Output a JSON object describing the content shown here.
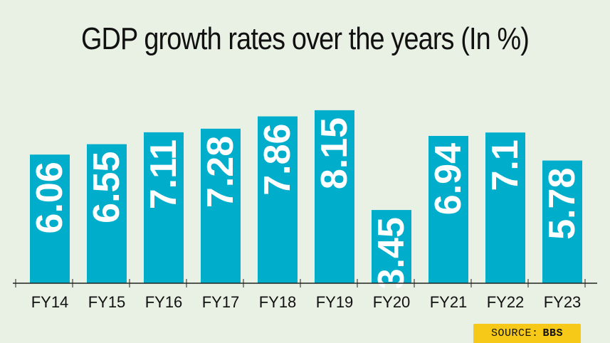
{
  "chart_data": {
    "type": "bar",
    "title": "GDP growth rates over the years (In %)",
    "categories": [
      "FY14",
      "FY15",
      "FY16",
      "FY17",
      "FY18",
      "FY19",
      "FY20",
      "FY21",
      "FY22",
      "FY23"
    ],
    "values": [
      6.06,
      6.55,
      7.11,
      7.28,
      7.86,
      8.15,
      3.45,
      6.94,
      7.1,
      5.78
    ],
    "value_labels": [
      "6.06",
      "6.55",
      "7.11",
      "7.28",
      "7.86",
      "8.15",
      "3.45",
      "6.94",
      "7.1",
      "5.78"
    ],
    "xlabel": "",
    "ylabel": "",
    "ylim": [
      0,
      9.32
    ],
    "grid": false,
    "bar_color": "#00aecc"
  },
  "source": {
    "label": "SOURCE:",
    "value": "BBS",
    "color": "#f6c919"
  }
}
